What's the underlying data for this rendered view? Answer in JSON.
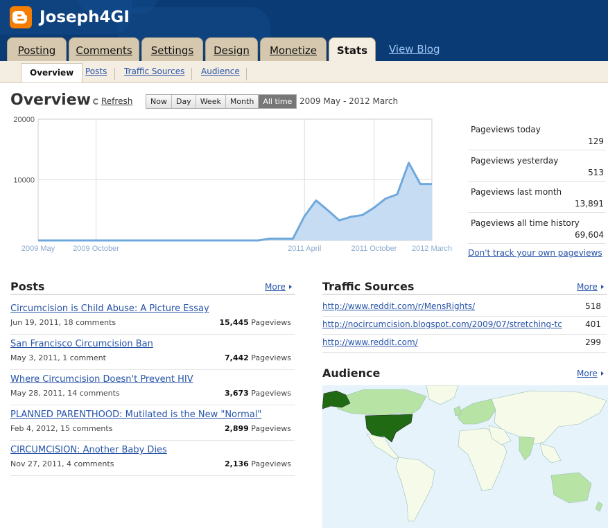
{
  "header": {
    "blog_title": "Joseph4GI"
  },
  "tabs": [
    {
      "label": "Posting"
    },
    {
      "label": "Comments"
    },
    {
      "label": "Settings"
    },
    {
      "label": "Design"
    },
    {
      "label": "Monetize"
    },
    {
      "label": "Stats",
      "active": true
    }
  ],
  "view_blog": "View Blog",
  "subtabs": [
    {
      "label": "Overview",
      "active": true
    },
    {
      "label": "Posts"
    },
    {
      "label": "Traffic Sources"
    },
    {
      "label": "Audience"
    }
  ],
  "overview": {
    "title": "Overview",
    "refresh": "Refresh",
    "ranges": [
      "Now",
      "Day",
      "Week",
      "Month",
      "All time"
    ],
    "selected_range": "All time",
    "date_range": "2009 May - 2012 March"
  },
  "chart_data": {
    "type": "area",
    "x": [
      "2009 May",
      "2009 Jun",
      "2009 Jul",
      "2009 Aug",
      "2009 Sep",
      "2009 Oct",
      "2009 Nov",
      "2009 Dec",
      "2010 Jan",
      "2010 Feb",
      "2010 Mar",
      "2010 Apr",
      "2010 May",
      "2010 Jun",
      "2010 Jul",
      "2010 Aug",
      "2010 Sep",
      "2010 Oct",
      "2010 Nov",
      "2010 Dec",
      "2011 Jan",
      "2011 Feb",
      "2011 Mar",
      "2011 Apr",
      "2011 May",
      "2011 Jun",
      "2011 Jul",
      "2011 Aug",
      "2011 Sep",
      "2011 Oct",
      "2011 Nov",
      "2011 Dec",
      "2012 Jan",
      "2012 Feb",
      "2012 Mar"
    ],
    "series": [
      {
        "values": [
          0,
          0,
          0,
          0,
          0,
          0,
          0,
          0,
          0,
          0,
          0,
          0,
          0,
          0,
          0,
          0,
          0,
          0,
          0,
          0,
          300,
          300,
          300,
          4000,
          6600,
          5000,
          3300,
          3900,
          4200,
          5400,
          6900,
          7600,
          12800,
          9300,
          9300
        ]
      }
    ],
    "x_tick_labels": [
      "2009 May",
      "2009 October",
      "2011 April",
      "2011 October",
      "2012 March"
    ],
    "y_ticks": [
      10000,
      20000
    ],
    "ylim": [
      0,
      20000
    ],
    "grid": true,
    "color": "#6fa8dc",
    "fill_color": "#c6dcf3"
  },
  "stats": [
    {
      "label": "Pageviews today",
      "value": "129"
    },
    {
      "label": "Pageviews yesterday",
      "value": "513"
    },
    {
      "label": "Pageviews last month",
      "value": "13,891"
    },
    {
      "label": "Pageviews all time history",
      "value": "69,604"
    }
  ],
  "dont_track": "Don't track your own pageviews",
  "posts": {
    "title": "Posts",
    "more": "More",
    "pageviews_label": "Pageviews",
    "items": [
      {
        "title": "Circumcision is Child Abuse: A Picture Essay",
        "meta": "Jun 19, 2011, 18 comments",
        "views": "15,445"
      },
      {
        "title": "San Francisco Circumcision Ban",
        "meta": "May 3, 2011, 1 comment",
        "views": "7,442"
      },
      {
        "title": "Where Circumcision Doesn't Prevent HIV",
        "meta": "May 28, 2011, 14 comments",
        "views": "3,673"
      },
      {
        "title": "PLANNED PARENTHOOD: Mutilated is the New \"Normal\"",
        "meta": "Feb 4, 2012, 15 comments",
        "views": "2,899"
      },
      {
        "title": "CIRCUMCISION: Another Baby Dies",
        "meta": "Nov 27, 2011, 4 comments",
        "views": "2,136"
      }
    ]
  },
  "traffic": {
    "title": "Traffic Sources",
    "more": "More",
    "items": [
      {
        "url": "http://www.reddit.com/r/MensRights/",
        "count": "518"
      },
      {
        "url": "http://nocircumcision.blogspot.com/2009/07/stretching-tc",
        "count": "401"
      },
      {
        "url": "http://www.reddit.com/",
        "count": "299"
      }
    ]
  },
  "audience": {
    "title": "Audience",
    "more": "More",
    "ocean_color": "#e6f3fb",
    "land_color": "#f6fbe9",
    "top_color": "#1f6a12",
    "mid_color": "#b7e3a5"
  }
}
